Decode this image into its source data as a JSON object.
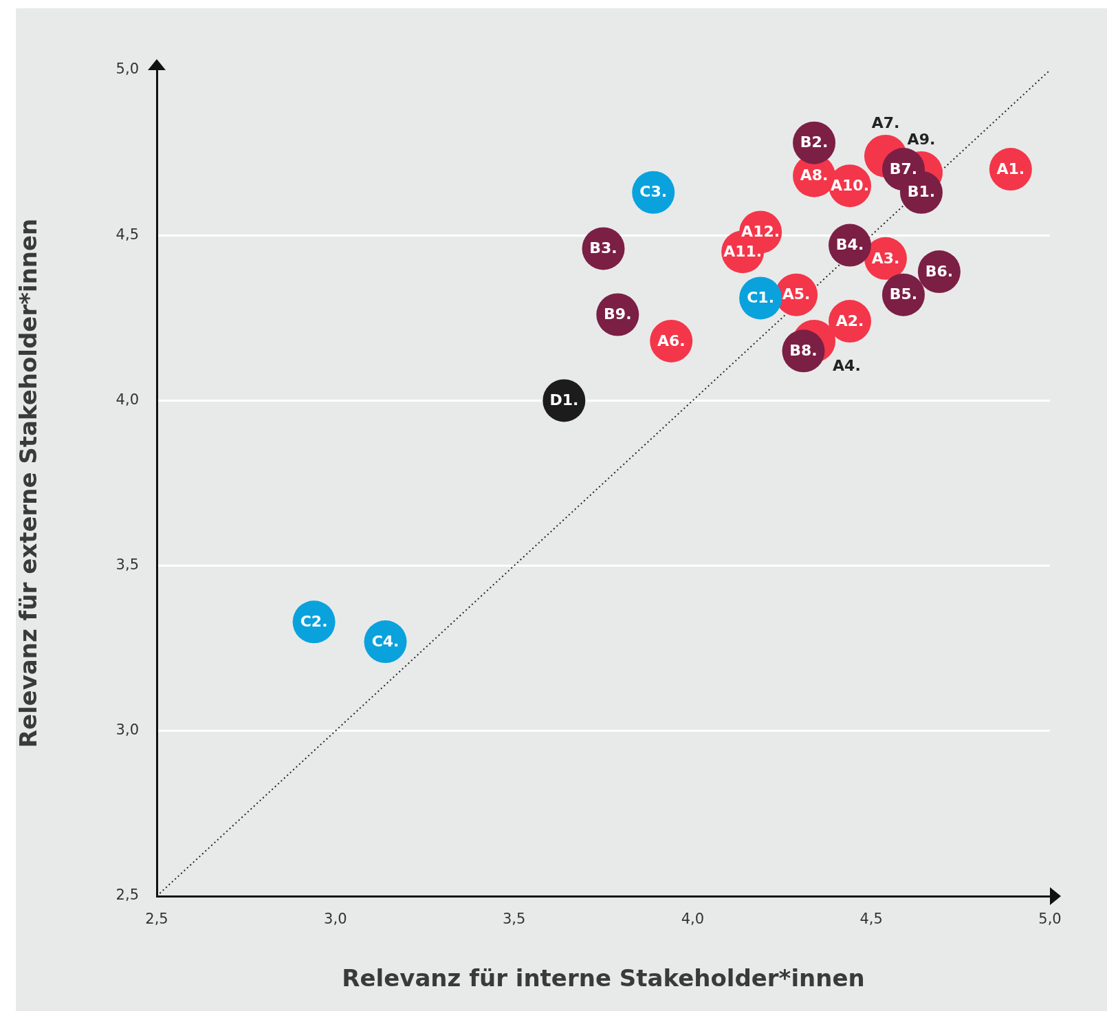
{
  "chart_data": {
    "type": "scatter",
    "xlabel": "Relevanz für interne Stakeholder*innen",
    "ylabel": "Relevanz für externe Stakeholder*innen",
    "xlim": [
      2.5,
      5.0
    ],
    "ylim": [
      2.5,
      5.0
    ],
    "xticks": [
      {
        "value": 2.5,
        "label": "2,5"
      },
      {
        "value": 3.0,
        "label": "3,0"
      },
      {
        "value": 3.5,
        "label": "3,5"
      },
      {
        "value": 4.0,
        "label": "4,0"
      },
      {
        "value": 4.5,
        "label": "4,5"
      },
      {
        "value": 5.0,
        "label": "5,0"
      }
    ],
    "yticks": [
      {
        "value": 2.5,
        "label": "2,5"
      },
      {
        "value": 3.0,
        "label": "3,0"
      },
      {
        "value": 3.5,
        "label": "3,5"
      },
      {
        "value": 4.0,
        "label": "4,0"
      },
      {
        "value": 4.5,
        "label": "4,5"
      },
      {
        "value": 5.0,
        "label": "5,0"
      }
    ],
    "grid": "y",
    "legend": false,
    "marker": "circle",
    "series": [
      {
        "type": "line",
        "color": "#222222",
        "line_style": "dotted",
        "marker": "none",
        "x": [
          2.5,
          5.0
        ],
        "values": [
          2.5,
          5.0
        ]
      },
      {
        "color": "#f4364a",
        "x": [
          4.89,
          4.44,
          4.54,
          4.34,
          4.29,
          3.94,
          4.54,
          4.34,
          4.64,
          4.44,
          4.14,
          4.19
        ],
        "values": [
          4.7,
          4.24,
          4.43,
          4.18,
          4.32,
          4.18,
          4.74,
          4.68,
          4.69,
          4.65,
          4.45,
          4.51
        ]
      },
      {
        "color": "#7b1f45",
        "x": [
          4.64,
          4.34,
          3.75,
          4.44,
          4.59,
          4.69,
          4.59,
          4.31,
          3.79
        ],
        "values": [
          4.63,
          4.78,
          4.46,
          4.47,
          4.32,
          4.39,
          4.7,
          4.15,
          4.26
        ]
      },
      {
        "color": "#0aa2dd",
        "x": [
          4.19,
          2.94,
          3.89,
          3.14
        ],
        "values": [
          4.31,
          3.33,
          4.63,
          3.27
        ]
      },
      {
        "color": "#1c1c1c",
        "x": [
          3.64
        ],
        "values": [
          4.0
        ]
      }
    ],
    "annotations": [
      {
        "text": "A1.",
        "x": 4.89,
        "y": 4.7
      },
      {
        "text": "A2.",
        "x": 4.44,
        "y": 4.24
      },
      {
        "text": "A3.",
        "x": 4.54,
        "y": 4.43
      },
      {
        "text": "A4.",
        "x": 4.34,
        "y": 4.18
      },
      {
        "text": "A5.",
        "x": 4.29,
        "y": 4.32
      },
      {
        "text": "A6.",
        "x": 3.94,
        "y": 4.18
      },
      {
        "text": "A7.",
        "x": 4.54,
        "y": 4.74
      },
      {
        "text": "A8.",
        "x": 4.34,
        "y": 4.68
      },
      {
        "text": "A9.",
        "x": 4.64,
        "y": 4.69
      },
      {
        "text": "A10.",
        "x": 4.44,
        "y": 4.65
      },
      {
        "text": "A11.",
        "x": 4.14,
        "y": 4.45
      },
      {
        "text": "A12.",
        "x": 4.19,
        "y": 4.51
      },
      {
        "text": "B1.",
        "x": 4.64,
        "y": 4.63
      },
      {
        "text": "B2.",
        "x": 4.34,
        "y": 4.78
      },
      {
        "text": "B3.",
        "x": 3.75,
        "y": 4.46
      },
      {
        "text": "B4.",
        "x": 4.44,
        "y": 4.47
      },
      {
        "text": "B5.",
        "x": 4.59,
        "y": 4.32
      },
      {
        "text": "B6.",
        "x": 4.69,
        "y": 4.39
      },
      {
        "text": "B7.",
        "x": 4.59,
        "y": 4.7
      },
      {
        "text": "B8.",
        "x": 4.31,
        "y": 4.15
      },
      {
        "text": "B9.",
        "x": 3.79,
        "y": 4.26
      },
      {
        "text": "C1.",
        "x": 4.19,
        "y": 4.31
      },
      {
        "text": "C2.",
        "x": 2.94,
        "y": 3.33
      },
      {
        "text": "C3.",
        "x": 3.89,
        "y": 4.63
      },
      {
        "text": "C4.",
        "x": 3.14,
        "y": 3.27
      },
      {
        "text": "D1.",
        "x": 3.64,
        "y": 4.0
      }
    ]
  }
}
